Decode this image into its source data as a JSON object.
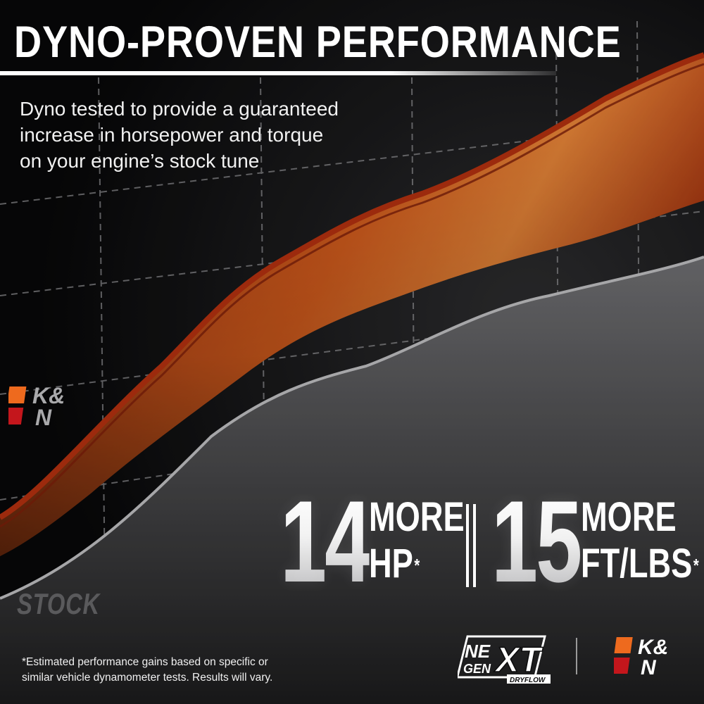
{
  "headline": "DYNO-PROVEN PERFORMANCE",
  "subhead": [
    "Dyno tested to provide a guaranteed",
    "increase in horsepower and torque",
    "on your engine’s stock tune"
  ],
  "curve_label": "STOCK",
  "stats": [
    {
      "number": "14",
      "line1": "MORE",
      "line2": "HP",
      "mark": "*"
    },
    {
      "number": "15",
      "line1": "MORE",
      "line2": "FT/LBS",
      "mark": "*"
    }
  ],
  "disclaimer": [
    "*Estimated performance gains based on specific or",
    "similar vehicle dynamometer tests. Results will vary."
  ],
  "brand": {
    "logo_line1": "K&",
    "logo_line2": "N",
    "badge": {
      "line1": "NE",
      "line2": "GEN",
      "accent": "XT",
      "tag": "DRYFLOW"
    }
  },
  "colors": {
    "background": "#0b0b0c",
    "performance_curve": "#d8501c",
    "stock_curve": "#8a8a8c",
    "logo_orange": "#ee6a1e",
    "logo_red": "#c4161c"
  }
}
